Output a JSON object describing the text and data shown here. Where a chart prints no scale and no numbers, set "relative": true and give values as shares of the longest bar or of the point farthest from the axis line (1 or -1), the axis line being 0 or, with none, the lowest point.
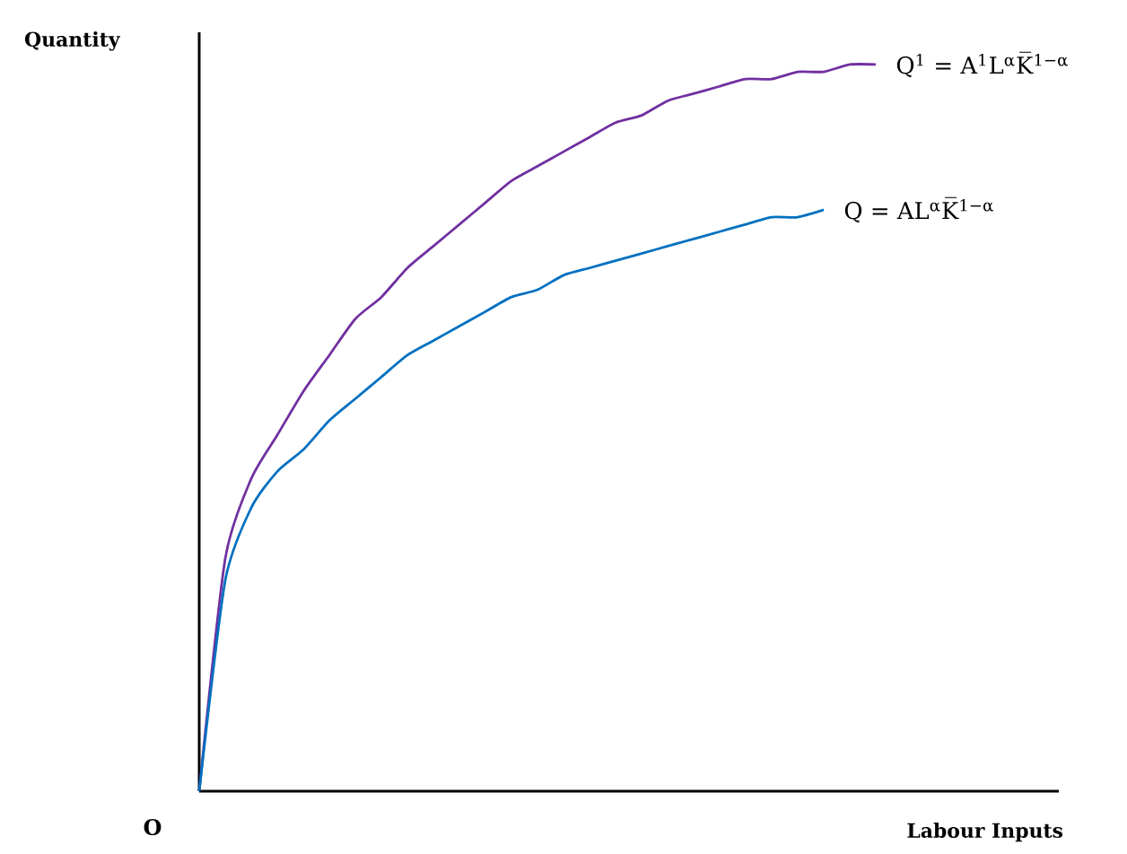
{
  "chart_data": {
    "type": "line",
    "relative": true,
    "xlabel": "Labour Inputs",
    "ylabel": "Quantity",
    "annotations": [
      "O"
    ],
    "categories": [
      null,
      null,
      null,
      null,
      null,
      null,
      null,
      null,
      null,
      null,
      null,
      null,
      null,
      null,
      null,
      null,
      null,
      null,
      null,
      null,
      null,
      null,
      null,
      null,
      null,
      null,
      null
    ],
    "series": [
      {
        "name": "Q$^{1}$ = A$^{1}$L$^{α}$K̅$^{1−α}$",
        "color": "#7030a0",
        "values": [
          0,
          0.32,
          0.43,
          0.49,
          0.55,
          0.6,
          0.65,
          0.68,
          0.72,
          0.75,
          0.78,
          0.81,
          0.84,
          0.86,
          0.88,
          0.9,
          0.92,
          0.93,
          0.95,
          0.96,
          0.97,
          0.98,
          0.98,
          0.99,
          0.99,
          1.0,
          1.0
        ]
      },
      {
        "name": "Q = AL$^{α}$K̅$^{1−α}$",
        "color": "#0070c0",
        "values": [
          0,
          0.29,
          0.39,
          0.44,
          0.47,
          0.51,
          0.54,
          0.57,
          0.6,
          0.62,
          0.64,
          0.66,
          0.68,
          0.69,
          0.71,
          0.72,
          0.73,
          0.74,
          0.75,
          0.76,
          0.77,
          0.78,
          0.79,
          0.79,
          0.8,
          null,
          null
        ]
      }
    ],
    "marker": "none",
    "line_style": "solid"
  }
}
